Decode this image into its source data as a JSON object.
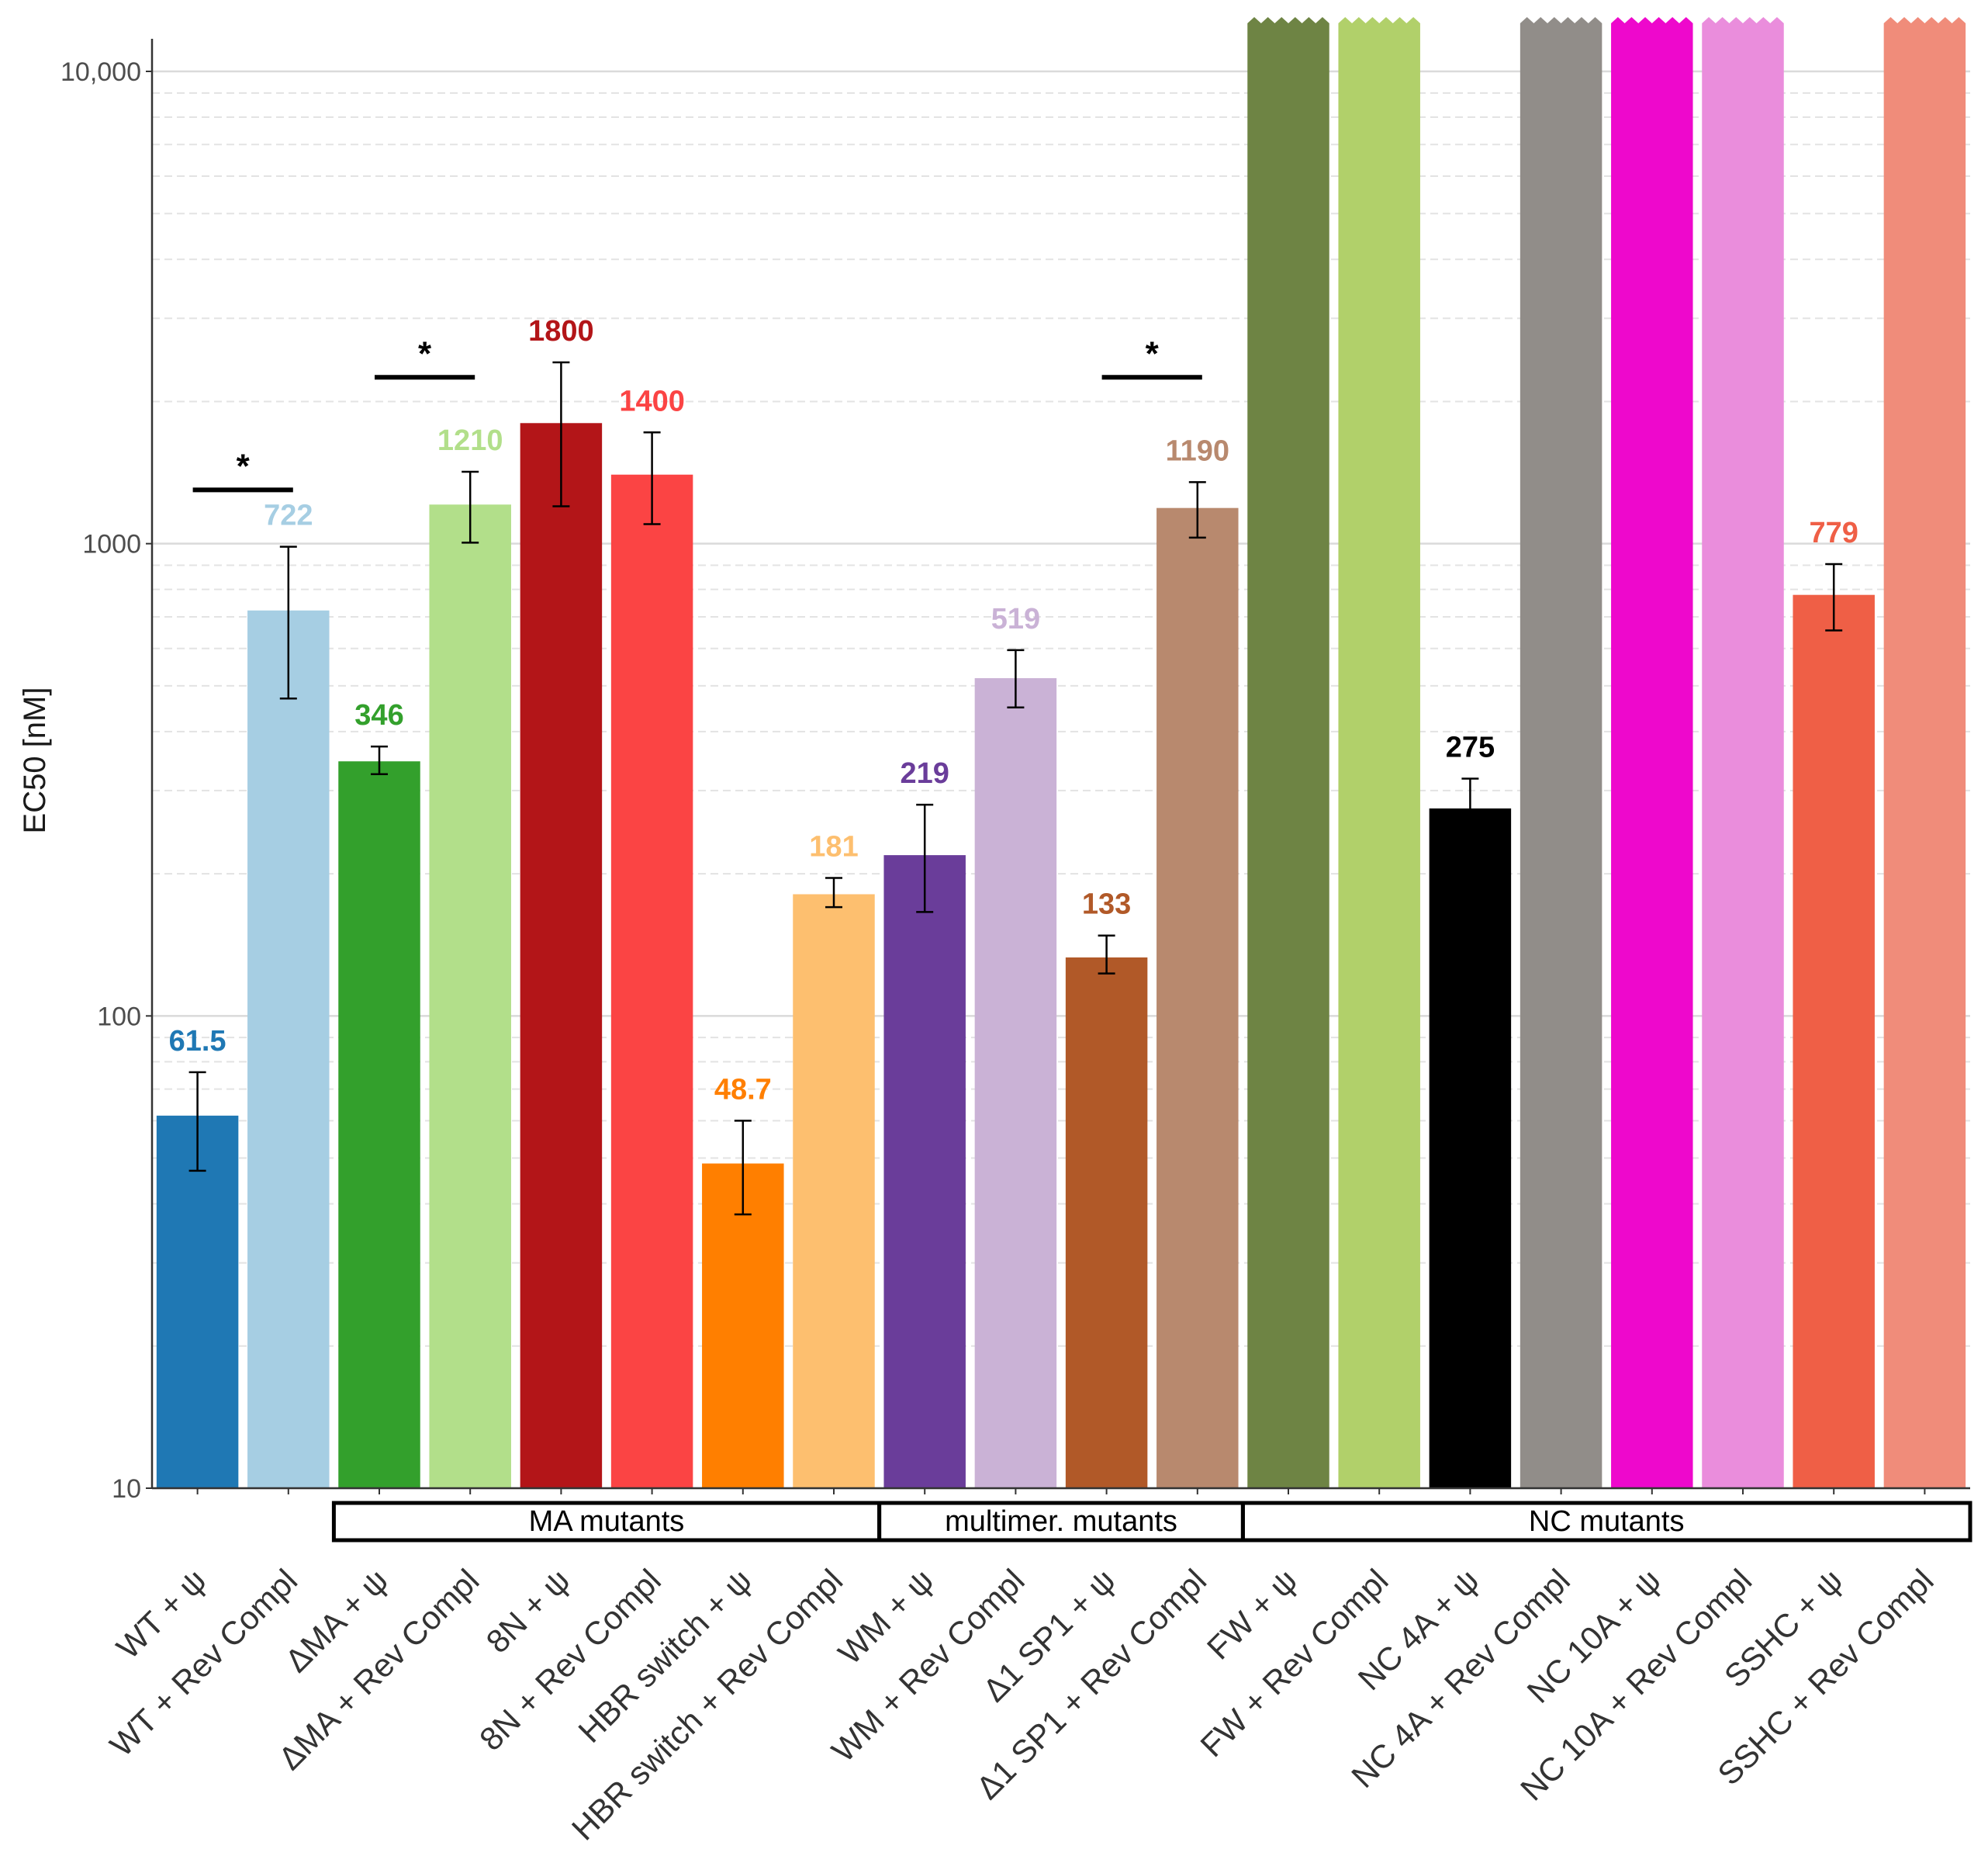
{
  "chart_data": {
    "type": "bar",
    "ylabel": "EC50 [nM]",
    "yscale": "log",
    "ylim": [
      10,
      12500
    ],
    "yticks": [
      {
        "value": 10,
        "label": "10"
      },
      {
        "value": 100,
        "label": "100"
      },
      {
        "value": 1000,
        "label": "1000"
      },
      {
        "value": 10000,
        "label": "10,000"
      }
    ],
    "grid": true,
    "bars": [
      {
        "category": "WT + ψ",
        "value": 61.5,
        "err": [
          47,
          76
        ],
        "label": "61.5",
        "color": "#1f78b4",
        "label_color": "#1f78b4"
      },
      {
        "category": "WT + Rev Compl",
        "value": 722,
        "err": [
          470,
          985
        ],
        "label": "722",
        "color": "#a6cee3",
        "label_color": "#a6cee3"
      },
      {
        "category": "ΔMA + ψ",
        "value": 346,
        "err": [
          325,
          372
        ],
        "label": "346",
        "color": "#33a02c",
        "label_color": "#33a02c"
      },
      {
        "category": "ΔMA + Rev Compl",
        "value": 1210,
        "err": [
          1005,
          1420
        ],
        "label": "1210",
        "color": "#b2df8a",
        "label_color": "#b2df8a"
      },
      {
        "category": "8N + ψ",
        "value": 1800,
        "err": [
          1200,
          2420
        ],
        "label": "1800",
        "color": "#b31518",
        "label_color": "#b31518"
      },
      {
        "category": "8N + Rev Compl",
        "value": 1400,
        "err": [
          1100,
          1720
        ],
        "label": "1400",
        "color": "#fb4444",
        "label_color": "#fb4444"
      },
      {
        "category": "HBR switch + ψ",
        "value": 48.7,
        "err": [
          38,
          60
        ],
        "label": "48.7",
        "color": "#ff7f00",
        "label_color": "#ff7f00"
      },
      {
        "category": "HBR switch + Rev Compl",
        "value": 181,
        "err": [
          170,
          196
        ],
        "label": "181",
        "color": "#fdbf6f",
        "label_color": "#fdbf6f"
      },
      {
        "category": "WM + ψ",
        "value": 219,
        "err": [
          166,
          280
        ],
        "label": "219",
        "color": "#6a3d9a",
        "label_color": "#6a3d9a"
      },
      {
        "category": "WM + Rev Compl",
        "value": 519,
        "err": [
          450,
          595
        ],
        "label": "519",
        "color": "#cab2d6",
        "label_color": "#cab2d6"
      },
      {
        "category": "Δ1 SP1 + ψ",
        "value": 133,
        "err": [
          123,
          148
        ],
        "label": "133",
        "color": "#b15928",
        "label_color": "#b15928"
      },
      {
        "category": "Δ1 SP1 + Rev Compl",
        "value": 1190,
        "err": [
          1030,
          1350
        ],
        "label": "1190",
        "color": "#b8896e",
        "label_color": "#b8896e"
      },
      {
        "category": "FW + ψ",
        "value": null,
        "label": "",
        "color": "#6e8444",
        "capped": true
      },
      {
        "category": "FW + Rev Compl",
        "value": null,
        "label": "",
        "color": "#b1d06a",
        "capped": true
      },
      {
        "category": "NC 4A + ψ",
        "value": 275,
        "err": [
          250,
          318
        ],
        "label": "275",
        "color": "#000000",
        "label_color": "#000000"
      },
      {
        "category": "NC 4A + Rev Compl",
        "value": null,
        "label": "",
        "color": "#918d89",
        "capped": true
      },
      {
        "category": "NC 10A + ψ",
        "value": null,
        "label": "",
        "color": "#ee08cc",
        "capped": true
      },
      {
        "category": "NC 10A + Rev Compl",
        "value": null,
        "label": "",
        "color": "#ea8ddc",
        "capped": true
      },
      {
        "category": "SSHC + ψ",
        "value": 779,
        "err": [
          655,
          905
        ],
        "label": "779",
        "color": "#ef5f46",
        "label_color": "#ef5f46"
      },
      {
        "category": "SSHC + Rev Compl",
        "value": null,
        "label": "",
        "color": "#f08c7a",
        "capped": true
      }
    ],
    "significance": [
      {
        "from": 0,
        "to": 1,
        "level": 1300,
        "text": "*"
      },
      {
        "from": 2,
        "to": 3,
        "level": 2250,
        "text": "*"
      },
      {
        "from": 10,
        "to": 11,
        "level": 2250,
        "text": "*"
      }
    ],
    "groups": [
      {
        "name": "MA mutants",
        "from": 2,
        "to": 7
      },
      {
        "name": "multimer. mutants",
        "from": 8,
        "to": 11
      },
      {
        "name": "NC mutants",
        "from": 12,
        "to": 19
      }
    ]
  }
}
